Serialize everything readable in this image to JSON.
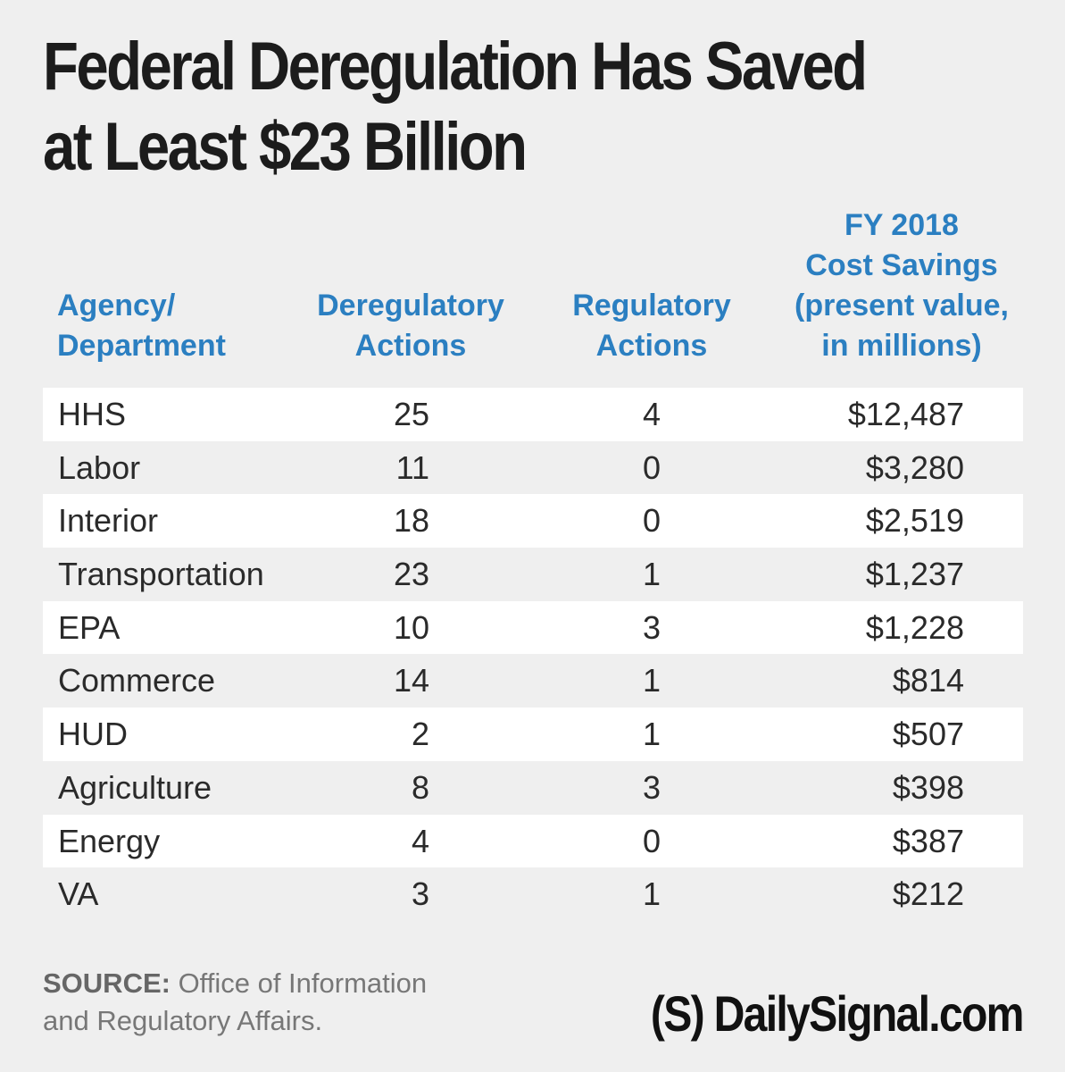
{
  "title_line1": "Federal Deregulation Has Saved",
  "title_line2": "at Least $23 Billion",
  "chart_data": {
    "type": "table",
    "title": "Federal Deregulation Has Saved at Least $23 Billion",
    "columns": [
      "Agency/ Department",
      "Deregulatory Actions",
      "Regulatory Actions",
      "FY 2018 Cost Savings (present value, in millions)"
    ],
    "rows": [
      {
        "agency": "HHS",
        "dereg": "25",
        "reg": "4",
        "cost": "$12,487"
      },
      {
        "agency": "Labor",
        "dereg": "11",
        "reg": "0",
        "cost": "$3,280"
      },
      {
        "agency": "Interior",
        "dereg": "18",
        "reg": "0",
        "cost": "$2,519"
      },
      {
        "agency": "Transportation",
        "dereg": "23",
        "reg": "1",
        "cost": "$1,237"
      },
      {
        "agency": "EPA",
        "dereg": "10",
        "reg": "3",
        "cost": "$1,228"
      },
      {
        "agency": "Commerce",
        "dereg": "14",
        "reg": "1",
        "cost": "$814"
      },
      {
        "agency": "HUD",
        "dereg": "2",
        "reg": "1",
        "cost": "$507"
      },
      {
        "agency": "Agriculture",
        "dereg": "8",
        "reg": "3",
        "cost": "$398"
      },
      {
        "agency": "Energy",
        "dereg": "4",
        "reg": "0",
        "cost": "$387"
      },
      {
        "agency": "VA",
        "dereg": "3",
        "reg": "1",
        "cost": "$212"
      }
    ]
  },
  "headers": {
    "agency_1": "Agency/",
    "agency_2": "Department",
    "dereg_1": "Deregulatory",
    "dereg_2": "Actions",
    "reg_1": "Regulatory",
    "reg_2": "Actions",
    "cost_1": "FY 2018",
    "cost_2": "Cost Savings",
    "cost_3": "(present value,",
    "cost_4": "in millions)"
  },
  "source": {
    "label": "SOURCE:",
    "text1": " Office of Information",
    "text2": "and Regulatory Affairs."
  },
  "logo": "(S) DailySignal.com",
  "colors": {
    "header_blue": "#2b7fc1",
    "background": "#efefef",
    "row_shade": "#ffffff"
  }
}
